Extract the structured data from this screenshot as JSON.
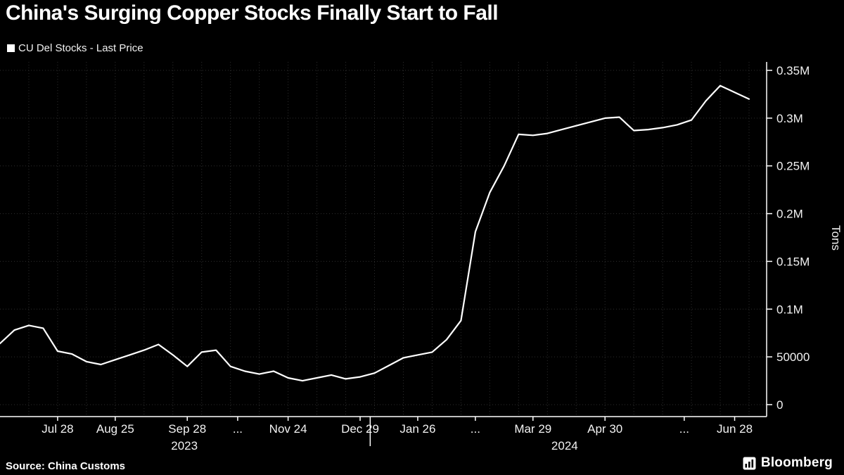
{
  "title": "China's Surging Copper Stocks Finally Start to Fall",
  "legend": {
    "label": "CU Del Stocks - Last Price"
  },
  "footer": {
    "source": "Source: China Customs",
    "brand": "Bloomberg"
  },
  "colors": {
    "background": "#000000",
    "line": "#ffffff",
    "grid": "#2e2e2e",
    "text": "#f2f2f2",
    "axis": "#ffffff"
  },
  "chart_data": {
    "type": "line",
    "title": "China's Surging Copper Stocks Finally Start to Fall",
    "ylabel": "Tons",
    "ylim": [
      0,
      350000
    ],
    "grid": "dotted",
    "legend_position": "top-left",
    "series": [
      {
        "name": "CU Del Stocks - Last Price",
        "unit": "tons",
        "values": [
          64000,
          78000,
          83000,
          80000,
          56000,
          53000,
          45000,
          42000,
          47000,
          52000,
          57000,
          63000,
          52000,
          40000,
          55000,
          57000,
          40000,
          35000,
          32000,
          35000,
          28000,
          25000,
          28000,
          31000,
          27000,
          29000,
          33000,
          41000,
          49000,
          52000,
          55000,
          68000,
          88000,
          181000,
          222000,
          250000,
          283000,
          282000,
          284000,
          288000,
          292000,
          296000,
          300000,
          301000,
          287000,
          288000,
          290000,
          293000,
          298000,
          318000,
          334000,
          327000,
          320000
        ]
      }
    ],
    "x_ticks": [
      {
        "i": 4,
        "label": "Jul 28"
      },
      {
        "i": 8,
        "label": "Aug 25"
      },
      {
        "i": 13,
        "label": "Sep 28"
      },
      {
        "i": 16.5,
        "label": "..."
      },
      {
        "i": 20,
        "label": "Nov 24"
      },
      {
        "i": 25,
        "label": "Dec 29"
      },
      {
        "i": 29,
        "label": "Jan 26"
      },
      {
        "i": 33,
        "label": "..."
      },
      {
        "i": 37,
        "label": "Mar 29"
      },
      {
        "i": 42,
        "label": "Apr 30"
      },
      {
        "i": 47.5,
        "label": "..."
      },
      {
        "i": 51,
        "label": "Jun 28"
      }
    ],
    "year_labels": [
      {
        "i": 12.8,
        "label": "2023"
      },
      {
        "i": 39.2,
        "label": "2024"
      }
    ],
    "year_divider_i": 25.7,
    "y_ticks": [
      {
        "value": 0,
        "label": "0"
      },
      {
        "value": 50000,
        "label": "50000"
      },
      {
        "value": 100000,
        "label": "0.1M"
      },
      {
        "value": 150000,
        "label": "0.15M"
      },
      {
        "value": 200000,
        "label": "0.2M"
      },
      {
        "value": 250000,
        "label": "0.25M"
      },
      {
        "value": 300000,
        "label": "0.3M"
      },
      {
        "value": 350000,
        "label": "0.35M"
      }
    ]
  }
}
